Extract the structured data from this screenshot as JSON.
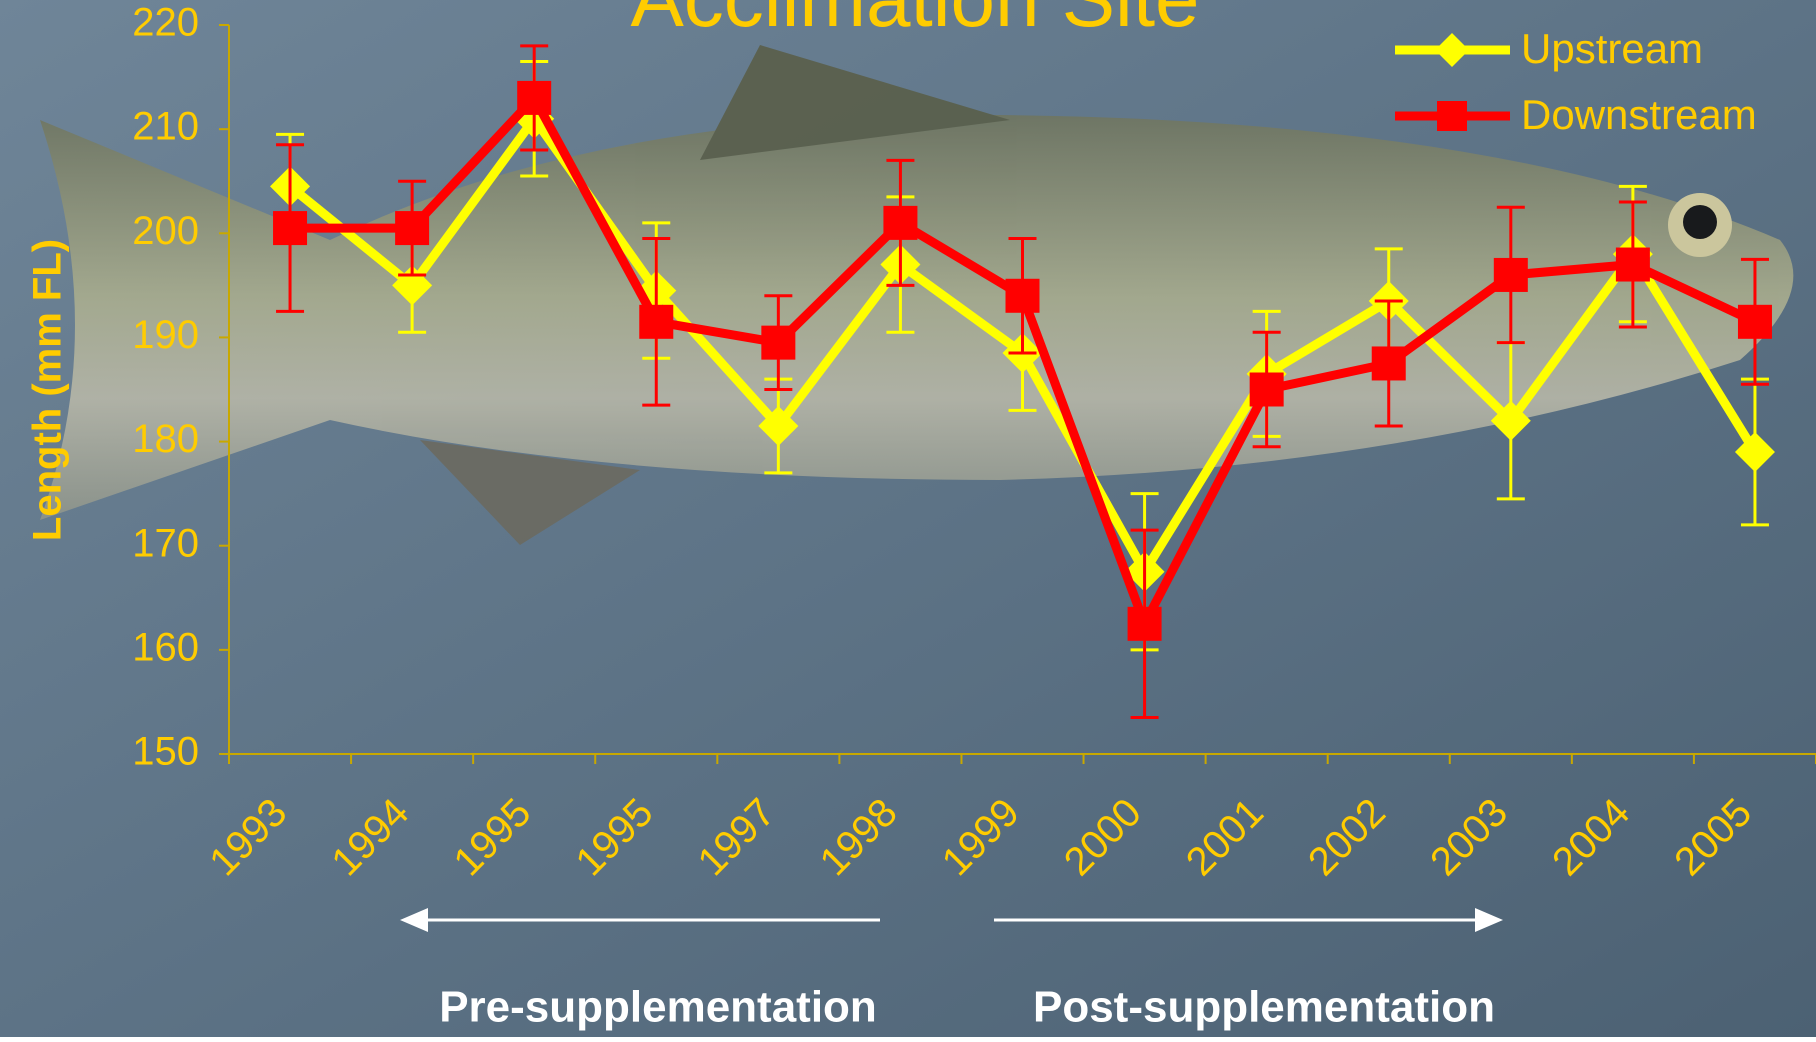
{
  "chart_data": {
    "type": "line",
    "title": "Acclimation Site",
    "y_label": "Length (mm FL)",
    "categories": [
      "1993",
      "1994",
      "1995",
      "1995",
      "1997",
      "1998",
      "1999",
      "2000",
      "2001",
      "2002",
      "2003",
      "2004",
      "2005"
    ],
    "series": [
      {
        "name": "Upstream",
        "color": "#ffff00",
        "marker": "diamond",
        "values": [
          204.5,
          195,
          211,
          194.5,
          181.5,
          197,
          188.5,
          167.5,
          186.5,
          193.5,
          182,
          198,
          179
        ],
        "errors": [
          5,
          4.5,
          5.5,
          6.5,
          4.5,
          6.5,
          5.5,
          7.5,
          6,
          5,
          7.5,
          6.5,
          7
        ]
      },
      {
        "name": "Downstream",
        "color": "#ff0000",
        "marker": "square",
        "values": [
          200.5,
          200.5,
          213,
          191.5,
          189.5,
          201,
          194,
          162.5,
          185,
          187.5,
          196,
          197,
          191.5
        ],
        "errors": [
          8,
          4.5,
          5,
          8,
          4.5,
          6,
          5.5,
          9,
          5.5,
          6,
          6.5,
          6,
          6
        ]
      }
    ],
    "ylim": [
      150,
      220
    ],
    "yticks": [
      150,
      160,
      170,
      180,
      190,
      200,
      210,
      220
    ],
    "legend": "top-right",
    "annotations": [
      "Pre-supplementation",
      "Post-supplementation"
    ]
  }
}
